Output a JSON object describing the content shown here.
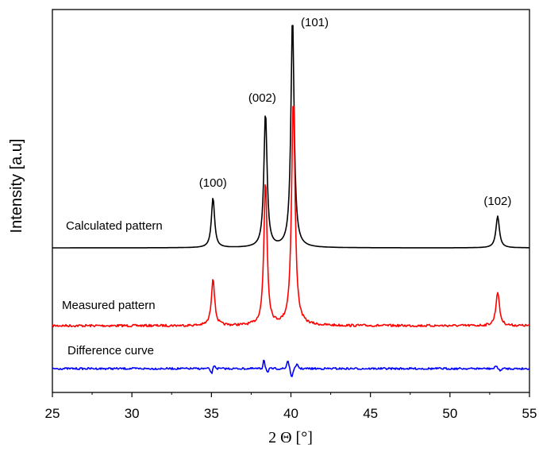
{
  "chart_data": {
    "type": "line",
    "xlabel": "2 Θ [°]",
    "ylabel": "Intensity [a.u]",
    "xlim": [
      25,
      55
    ],
    "x_ticks": [
      "25",
      "30",
      "35",
      "40",
      "45",
      "50",
      "55"
    ],
    "grid": false,
    "y_tick_labels": false,
    "legend": "inline labels at left of each curve",
    "peaks": [
      {
        "label": "(100)",
        "x": 35.1
      },
      {
        "label": "(002)",
        "x": 38.4
      },
      {
        "label": "(101)",
        "x": 40.1
      },
      {
        "label": "(102)",
        "x": 53.0
      }
    ],
    "series": [
      {
        "name": "Calculated pattern",
        "color": "#000000",
        "baseline": 312,
        "peaks": [
          {
            "x": 35.1,
            "height": 63,
            "width": 0.12
          },
          {
            "x": 38.4,
            "height": 170,
            "width": 0.12
          },
          {
            "x": 40.1,
            "height": 291,
            "width": 0.12
          },
          {
            "x": 53.0,
            "height": 40,
            "width": 0.13
          }
        ],
        "noise": 0
      },
      {
        "name": "Measured pattern",
        "color": "#ff0000",
        "baseline": 410,
        "peaks": [
          {
            "x": 35.1,
            "height": 60,
            "width": 0.12
          },
          {
            "x": 38.4,
            "height": 182,
            "width": 0.12
          },
          {
            "x": 40.15,
            "height": 285,
            "width": 0.13
          },
          {
            "x": 53.0,
            "height": 43,
            "width": 0.13
          }
        ],
        "noise": 1.5
      },
      {
        "name": "Difference curve",
        "color": "#0000ff",
        "baseline": 464,
        "features": [
          {
            "x": 35.0,
            "amp": -6,
            "width": 0.08
          },
          {
            "x": 35.2,
            "amp": 4,
            "width": 0.08
          },
          {
            "x": 38.3,
            "amp": 12,
            "width": 0.07
          },
          {
            "x": 38.55,
            "amp": -5,
            "width": 0.07
          },
          {
            "x": 39.8,
            "amp": 10,
            "width": 0.09
          },
          {
            "x": 40.05,
            "amp": -12,
            "width": 0.08
          },
          {
            "x": 40.4,
            "amp": 5,
            "width": 0.1
          },
          {
            "x": 52.9,
            "amp": 4,
            "width": 0.08
          },
          {
            "x": 53.15,
            "amp": -3,
            "width": 0.08
          }
        ],
        "noise": 1.2
      }
    ]
  }
}
